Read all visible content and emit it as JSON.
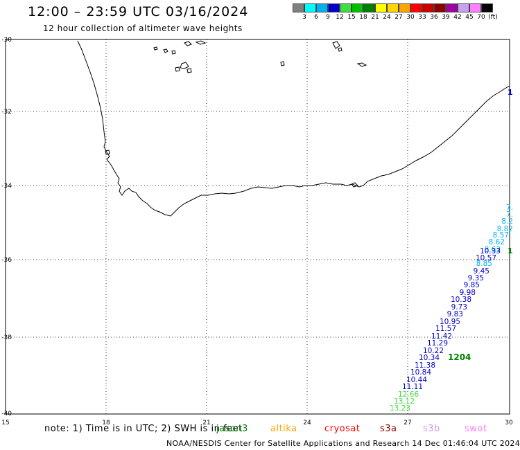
{
  "header": {
    "title": "12:00 – 23:59 UTC 03/16/2024",
    "subtitle": "12 hour collection of altimeter wave heights"
  },
  "legend": {
    "colors": [
      "#808080",
      "#00ffff",
      "#00b0f0",
      "#0000cd",
      "#40e040",
      "#00c000",
      "#008000",
      "#ffff00",
      "#ffd700",
      "#ffa500",
      "#ff0000",
      "#cc0000",
      "#8b0000",
      "#a000a0",
      "#c8a0f0",
      "#ff80ff",
      "#000000"
    ],
    "labels": [
      "3",
      "6",
      "9",
      "12",
      "15",
      "18",
      "21",
      "24",
      "27",
      "30",
      "33",
      "36",
      "39",
      "42",
      "45",
      "70",
      "(ft)"
    ]
  },
  "axes": {
    "lon_labels": [
      "15",
      "18",
      "21",
      "24",
      "27",
      "30"
    ],
    "lat_labels": [
      "-30",
      "-32",
      "-34",
      "-36",
      "-38",
      "-40"
    ]
  },
  "track_labels": [
    {
      "text": "7.",
      "color": "#00b0f0"
    },
    {
      "text": "7.",
      "color": "#00b0f0"
    },
    {
      "text": "8.2",
      "color": "#00b0f0"
    },
    {
      "text": "8.82",
      "color": "#00b0f0"
    },
    {
      "text": "8.57",
      "color": "#00b0f0"
    },
    {
      "text": "8.62",
      "color": "#00b0f0"
    },
    {
      "text": "8.63",
      "color": "#00b0f0"
    },
    {
      "text": "10.33",
      "color": "#0000cd"
    },
    {
      "text": "10.57",
      "color": "#0000cd"
    },
    {
      "text": "8.85",
      "color": "#00b0f0"
    },
    {
      "text": "9.45",
      "color": "#0000cd"
    },
    {
      "text": "9.35",
      "color": "#0000cd"
    },
    {
      "text": "9.85",
      "color": "#0000cd"
    },
    {
      "text": "9.98",
      "color": "#0000cd"
    },
    {
      "text": "10.38",
      "color": "#0000cd"
    },
    {
      "text": "9.73",
      "color": "#0000cd"
    },
    {
      "text": "9.83",
      "color": "#0000cd"
    },
    {
      "text": "10.95",
      "color": "#0000cd"
    },
    {
      "text": "11.57",
      "color": "#0000cd"
    },
    {
      "text": "11.42",
      "color": "#0000cd"
    },
    {
      "text": "11.29",
      "color": "#0000cd"
    },
    {
      "text": "10.22",
      "color": "#0000cd"
    },
    {
      "text": "10.34",
      "color": "#0000cd"
    },
    {
      "text": "11.38",
      "color": "#0000cd"
    },
    {
      "text": "10.84",
      "color": "#0000cd"
    },
    {
      "text": "10.44",
      "color": "#0000cd"
    },
    {
      "text": "11.11",
      "color": "#0000cd"
    },
    {
      "text": "12.66",
      "color": "#40e040"
    },
    {
      "text": "13.12",
      "color": "#40e040"
    },
    {
      "text": "13.23",
      "color": "#40e040"
    }
  ],
  "time_labels": [
    {
      "text": "1204",
      "color": "#008000"
    },
    {
      "text": "1",
      "color": "#008000"
    },
    {
      "text": "1",
      "color": "#0000cd"
    }
  ],
  "note": "note: 1) Time is in UTC; 2) SWH is in feet",
  "satellites": [
    {
      "name": "jason3",
      "color": "#008000"
    },
    {
      "name": "altika",
      "color": "#ffa500"
    },
    {
      "name": "cryosat",
      "color": "#ff0000"
    },
    {
      "name": "s3a",
      "color": "#8b0000"
    },
    {
      "name": "s3b",
      "color": "#c8a0f0"
    },
    {
      "name": "swot",
      "color": "#ff80ff"
    }
  ],
  "footer": "NOAA/NESDIS Center for Satellite Applications and Research    14 Dec 01:46:04 UTC 2024"
}
